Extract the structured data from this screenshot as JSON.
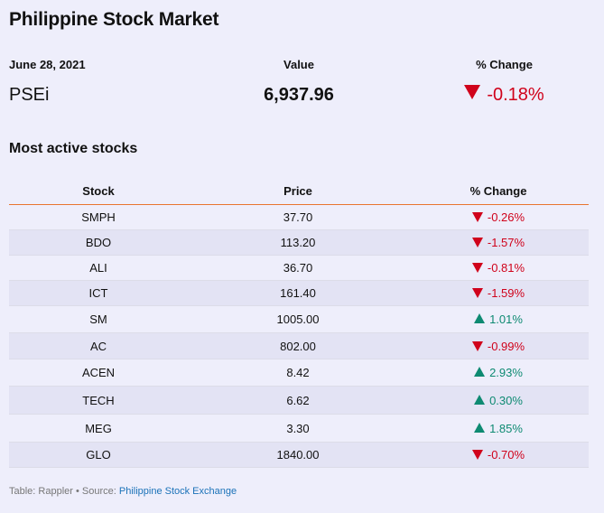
{
  "title": "Philippine Stock Market",
  "summary": {
    "date": "June 28, 2021",
    "value_header": "Value",
    "change_header": "% Change",
    "index_name": "PSEi",
    "index_value": "6,937.96",
    "index_change": "-0.18%",
    "index_direction": "down"
  },
  "subtitle": "Most active stocks",
  "table": {
    "headers": [
      "Stock",
      "Price",
      "% Change"
    ],
    "rows": [
      {
        "stock": "SMPH",
        "price": "37.70",
        "change": "-0.26%",
        "direction": "down"
      },
      {
        "stock": "BDO",
        "price": "113.20",
        "change": "-1.57%",
        "direction": "down"
      },
      {
        "stock": "ALI",
        "price": "36.70",
        "change": "-0.81%",
        "direction": "down"
      },
      {
        "stock": "ICT",
        "price": "161.40",
        "change": "-1.59%",
        "direction": "down"
      },
      {
        "stock": "SM",
        "price": "1005.00",
        "change": "1.01%",
        "direction": "up"
      },
      {
        "stock": "AC",
        "price": "802.00",
        "change": "-0.99%",
        "direction": "down"
      },
      {
        "stock": "ACEN",
        "price": "8.42",
        "change": "2.93%",
        "direction": "up"
      },
      {
        "stock": "TECH",
        "price": "6.62",
        "change": "0.30%",
        "direction": "up"
      },
      {
        "stock": "MEG",
        "price": "3.30",
        "change": "1.85%",
        "direction": "up"
      },
      {
        "stock": "GLO",
        "price": "1840.00",
        "change": "-0.70%",
        "direction": "down"
      }
    ]
  },
  "footer": {
    "prefix": "Table: Rappler • Source: ",
    "source_link": "Philippine Stock Exchange"
  },
  "colors": {
    "background": "#eeeefb",
    "down": "#d0021b",
    "up": "#0e8a72",
    "header_rule": "#e8742f",
    "link": "#1a72b8"
  }
}
